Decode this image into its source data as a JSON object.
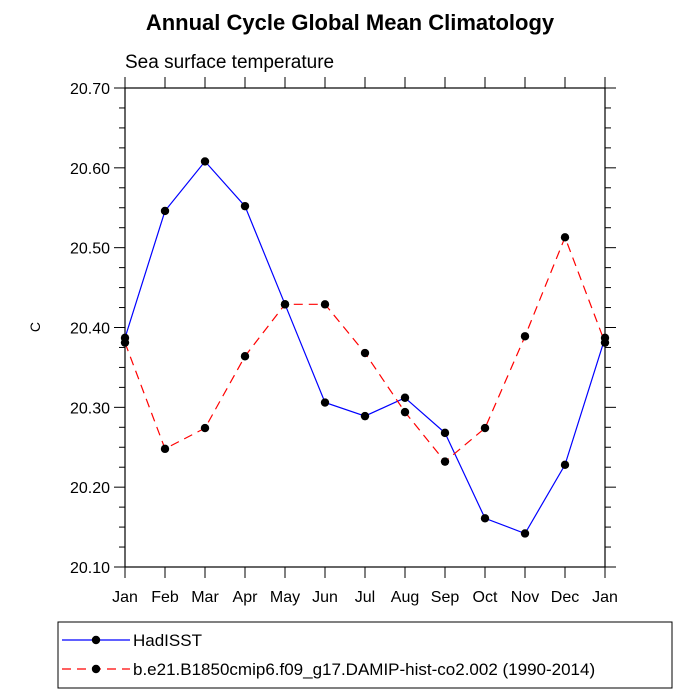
{
  "chart_data": {
    "type": "line",
    "title": "Annual Cycle Global Mean Climatology",
    "subtitle": "Sea surface temperature",
    "xlabel": "",
    "ylabel": "C",
    "categories": [
      "Jan",
      "Feb",
      "Mar",
      "Apr",
      "May",
      "Jun",
      "Jul",
      "Aug",
      "Sep",
      "Oct",
      "Nov",
      "Dec",
      "Jan"
    ],
    "ylim": [
      20.1,
      20.7
    ],
    "yticks": [
      "20.10",
      "20.20",
      "20.30",
      "20.40",
      "20.50",
      "20.60",
      "20.70"
    ],
    "grid": false,
    "legend_position": "bottom",
    "series": [
      {
        "name": "HadISST",
        "color": "#0000ff",
        "dash": "solid",
        "values": [
          20.387,
          20.546,
          20.608,
          20.552,
          20.429,
          20.306,
          20.289,
          20.312,
          20.268,
          20.161,
          20.142,
          20.228,
          20.387
        ]
      },
      {
        "name": "b.e21.B1850cmip6.f09_g17.DAMIP-hist-co2.002 (1990-2014)",
        "color": "#ff0000",
        "dash": "dashed",
        "values": [
          20.381,
          20.248,
          20.274,
          20.364,
          20.429,
          20.429,
          20.368,
          20.294,
          20.232,
          20.274,
          20.389,
          20.513,
          20.381
        ]
      }
    ]
  }
}
